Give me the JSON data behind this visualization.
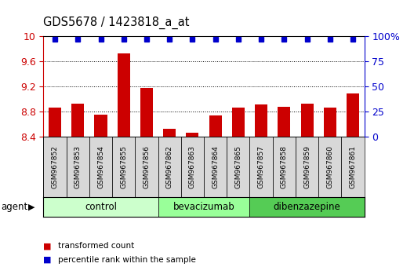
{
  "title": "GDS5678 / 1423818_a_at",
  "samples": [
    "GSM967852",
    "GSM967853",
    "GSM967854",
    "GSM967855",
    "GSM967856",
    "GSM967862",
    "GSM967863",
    "GSM967864",
    "GSM967865",
    "GSM967857",
    "GSM967858",
    "GSM967859",
    "GSM967860",
    "GSM967861"
  ],
  "bar_values": [
    8.86,
    8.92,
    8.75,
    9.72,
    9.18,
    8.52,
    8.46,
    8.73,
    8.86,
    8.91,
    8.87,
    8.92,
    8.86,
    9.09
  ],
  "percentile_values": [
    97,
    97,
    97,
    97,
    97,
    97,
    97,
    97,
    97,
    97,
    97,
    97,
    97,
    97
  ],
  "ylim_left": [
    8.4,
    10.0
  ],
  "ylim_right": [
    0,
    100
  ],
  "yticks_left": [
    8.4,
    8.8,
    9.2,
    9.6,
    10.0
  ],
  "ytick_labels_left": [
    "8.4",
    "8.8",
    "9.2",
    "9.6",
    "10"
  ],
  "yticks_right": [
    0,
    25,
    50,
    75,
    100
  ],
  "ytick_labels_right": [
    "0",
    "25",
    "50",
    "75",
    "100%"
  ],
  "bar_color": "#cc0000",
  "dot_color": "#0000cc",
  "groups": [
    {
      "label": "control",
      "start": 0,
      "end": 5,
      "color": "#ccffcc"
    },
    {
      "label": "bevacizumab",
      "start": 5,
      "end": 9,
      "color": "#99ff99"
    },
    {
      "label": "dibenzazepine",
      "start": 9,
      "end": 14,
      "color": "#55cc55"
    }
  ],
  "agent_label": "agent",
  "legend_bar_label": "transformed count",
  "legend_dot_label": "percentile rank within the sample",
  "tick_label_color_left": "#cc0000",
  "tick_label_color_right": "#0000cc",
  "xlabel_bg": "#d0d0d0",
  "plot_bg": "#ffffff"
}
